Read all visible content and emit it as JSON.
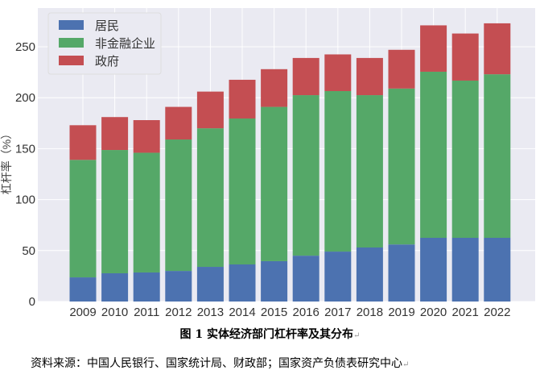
{
  "chart_data": {
    "type": "bar",
    "stacked": true,
    "categories": [
      "2009",
      "2010",
      "2011",
      "2012",
      "2013",
      "2014",
      "2015",
      "2016",
      "2017",
      "2018",
      "2019",
      "2020",
      "2021",
      "2022"
    ],
    "series": [
      {
        "name": "居民",
        "color": "#4c72b0",
        "values": [
          23.7,
          27.7,
          28.5,
          30.0,
          34.0,
          36.4,
          39.6,
          45.0,
          49.0,
          53.0,
          56.0,
          62.5,
          62.5,
          62.5
        ]
      },
      {
        "name": "非金融企业",
        "color": "#55a868",
        "values": [
          115.3,
          121.0,
          117.5,
          129.0,
          136.0,
          143.2,
          151.4,
          157.5,
          157.5,
          149.5,
          153.0,
          163.0,
          154.3,
          160.5
        ]
      },
      {
        "name": "政府",
        "color": "#c44e52",
        "values": [
          34.0,
          32.3,
          32.0,
          32.0,
          36.0,
          38.0,
          37.0,
          36.5,
          36.0,
          36.5,
          38.0,
          45.5,
          46.2,
          50.0
        ]
      }
    ],
    "ylabel": "杠杆率（%）",
    "ylim": [
      0,
      285
    ],
    "yticks": [
      0,
      50,
      100,
      150,
      200,
      250
    ],
    "grid": true,
    "legend": "top-left",
    "background": "#eaeaf2"
  },
  "caption": {
    "title": "图 1  实体经济部门杠杆率及其分布",
    "source": "资料来源：中国人民银行、国家统计局、财政部；国家资产负债表研究中心"
  },
  "marks": {
    "return": "↵"
  }
}
